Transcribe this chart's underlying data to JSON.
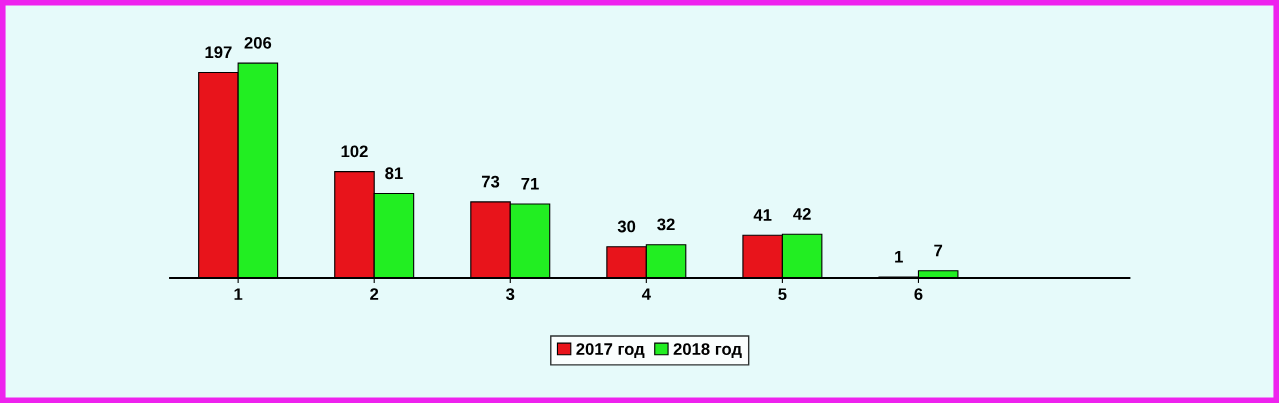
{
  "chart_data": {
    "type": "bar",
    "categories": [
      "1",
      "2",
      "3",
      "4",
      "5",
      "6"
    ],
    "series": [
      {
        "name": "2017 год",
        "color": "#e8141b",
        "values": [
          197,
          102,
          73,
          30,
          41,
          1
        ]
      },
      {
        "name": "2018 год",
        "color": "#22ee22",
        "values": [
          206,
          81,
          71,
          32,
          42,
          7
        ]
      }
    ],
    "data_labels": true,
    "grid": false,
    "legend": "bottom"
  }
}
